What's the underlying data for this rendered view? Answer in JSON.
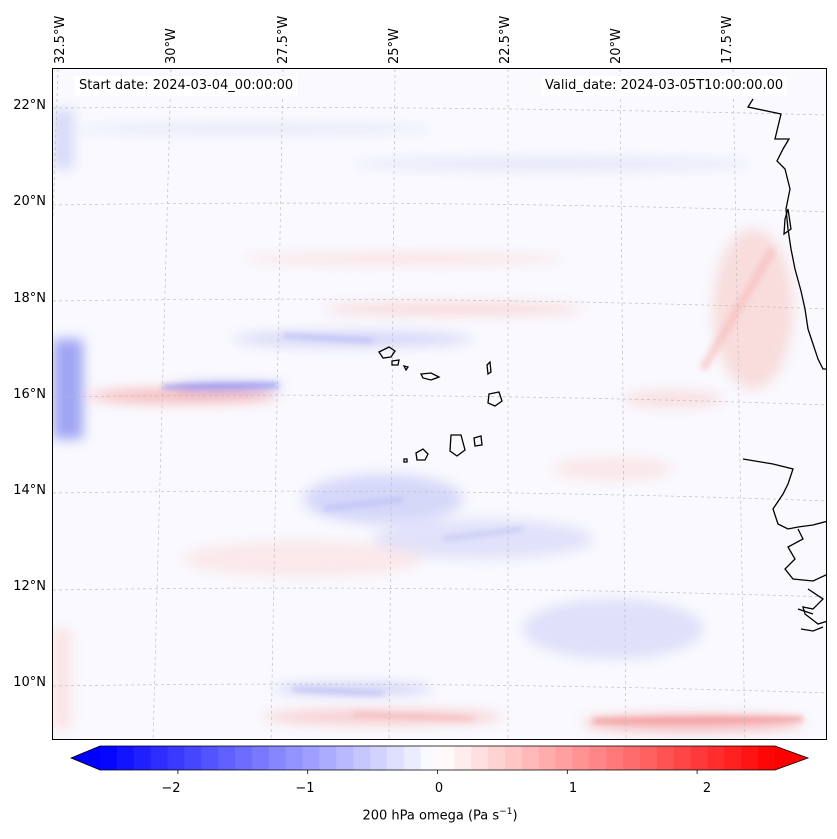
{
  "map": {
    "start_date_label": "Start date: 2024-03-04_00:00:00",
    "valid_date_label": "Valid_date: 2024-03-05T10:00:00.00",
    "longitude_labels": [
      "32.5°W",
      "30°W",
      "27.5°W",
      "25°W",
      "22.5°W",
      "20°W",
      "17.5°W"
    ],
    "latitude_labels": [
      "22°N",
      "20°N",
      "18°N",
      "16°N",
      "14°N",
      "12°N",
      "10°N"
    ],
    "extent": {
      "lon_min": -33.1,
      "lon_max": -15.7,
      "lat_min": 8.9,
      "lat_max": 22.7
    },
    "field": "200 hPa omega",
    "colormap": "bwr",
    "gridlines": true
  },
  "colorbar": {
    "label": "200 hPa omega (Pa s",
    "label_superscript": "−1",
    "label_suffix": ")",
    "tick_labels": [
      "−2",
      "−1",
      "0",
      "1",
      "2"
    ],
    "range": [
      -2.6,
      2.6
    ],
    "extend": "both",
    "colors": {
      "min": "#0000ff",
      "mid": "#ffffff",
      "max": "#ff0000"
    }
  }
}
